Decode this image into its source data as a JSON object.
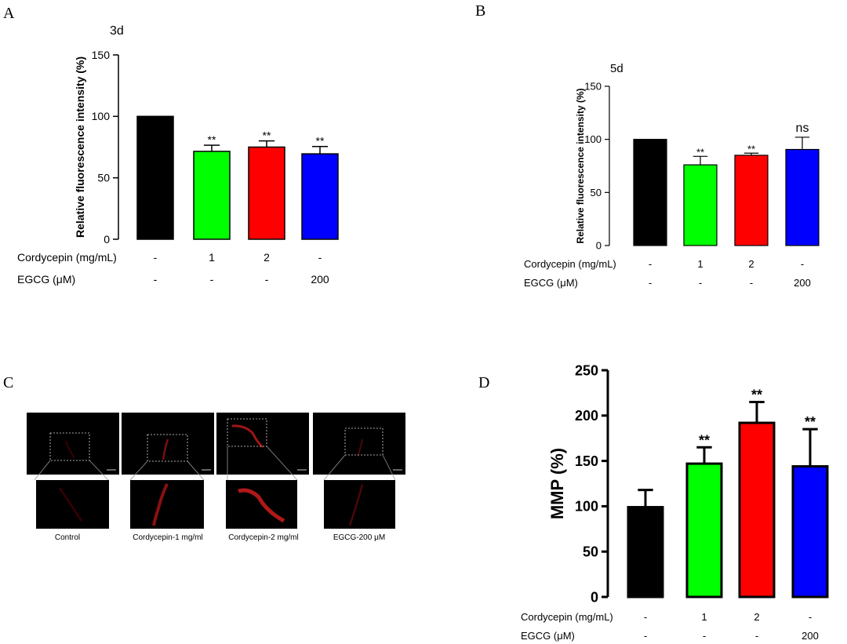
{
  "panel_labels": [
    "A",
    "B",
    "C",
    "D"
  ],
  "chart_data": [
    {
      "type": "bar",
      "panel": "A",
      "title": "3d",
      "ylabel": "Relative fluorescence intensity (%)",
      "ylim": [
        0,
        150
      ],
      "yticks": [
        0,
        50,
        100,
        150
      ],
      "categories": [
        "Control",
        "Cordycepin-1",
        "Cordycepin-2",
        "EGCG-200"
      ],
      "values": [
        100,
        71.5,
        75,
        69.5
      ],
      "errors": [
        0,
        5,
        5,
        6
      ],
      "significance": [
        "",
        "**",
        "**",
        "**"
      ],
      "colors": [
        "#000000",
        "#00ff00",
        "#ff0000",
        "#0000ff"
      ],
      "conditions": [
        {
          "label": "Cordycepin (mg/mL)",
          "values": [
            "-",
            "1",
            "2",
            "-"
          ]
        },
        {
          "label": "EGCG (μM)",
          "values": [
            "-",
            "-",
            "-",
            "200"
          ]
        }
      ]
    },
    {
      "type": "bar",
      "panel": "B",
      "title": "5d",
      "ylabel": "Relative fluorescence intensity (%)",
      "ylim": [
        0,
        150
      ],
      "yticks": [
        0,
        50,
        100,
        150
      ],
      "categories": [
        "Control",
        "Cordycepin-1",
        "Cordycepin-2",
        "EGCG-200"
      ],
      "values": [
        100,
        76,
        85,
        90.5
      ],
      "errors": [
        0,
        8,
        2,
        11.5
      ],
      "significance": [
        "",
        "**",
        "**",
        "ns"
      ],
      "colors": [
        "#000000",
        "#00ff00",
        "#ff0000",
        "#0000ff"
      ],
      "conditions": [
        {
          "label": "Cordycepin (mg/mL)",
          "values": [
            "-",
            "1",
            "2",
            "-"
          ]
        },
        {
          "label": "EGCG (μM)",
          "values": [
            "-",
            "-",
            "-",
            "200"
          ]
        }
      ]
    },
    {
      "type": "bar",
      "panel": "D",
      "title": "",
      "ylabel": "MMP (%)",
      "ylim": [
        0,
        250
      ],
      "yticks": [
        0,
        50,
        100,
        150,
        200,
        250
      ],
      "categories": [
        "Control",
        "Cordycepin-1",
        "Cordycepin-2",
        "EGCG-200"
      ],
      "values": [
        99,
        147,
        192,
        144
      ],
      "errors": [
        19,
        18,
        23,
        41
      ],
      "significance": [
        "",
        "**",
        "**",
        "**"
      ],
      "colors": [
        "#000000",
        "#00ff00",
        "#ff0000",
        "#0000ff"
      ],
      "conditions": [
        {
          "label": "Cordycepin (mg/mL)",
          "values": [
            "-",
            "1",
            "2",
            "-"
          ]
        },
        {
          "label": "EGCG (μM)",
          "values": [
            "-",
            "-",
            "-",
            "200"
          ]
        }
      ]
    }
  ],
  "micrographs": {
    "captions": [
      "Control",
      "Cordycepin-1 mg/ml",
      "Cordycepin-2 mg/ml",
      "EGCG-200 μM"
    ]
  }
}
